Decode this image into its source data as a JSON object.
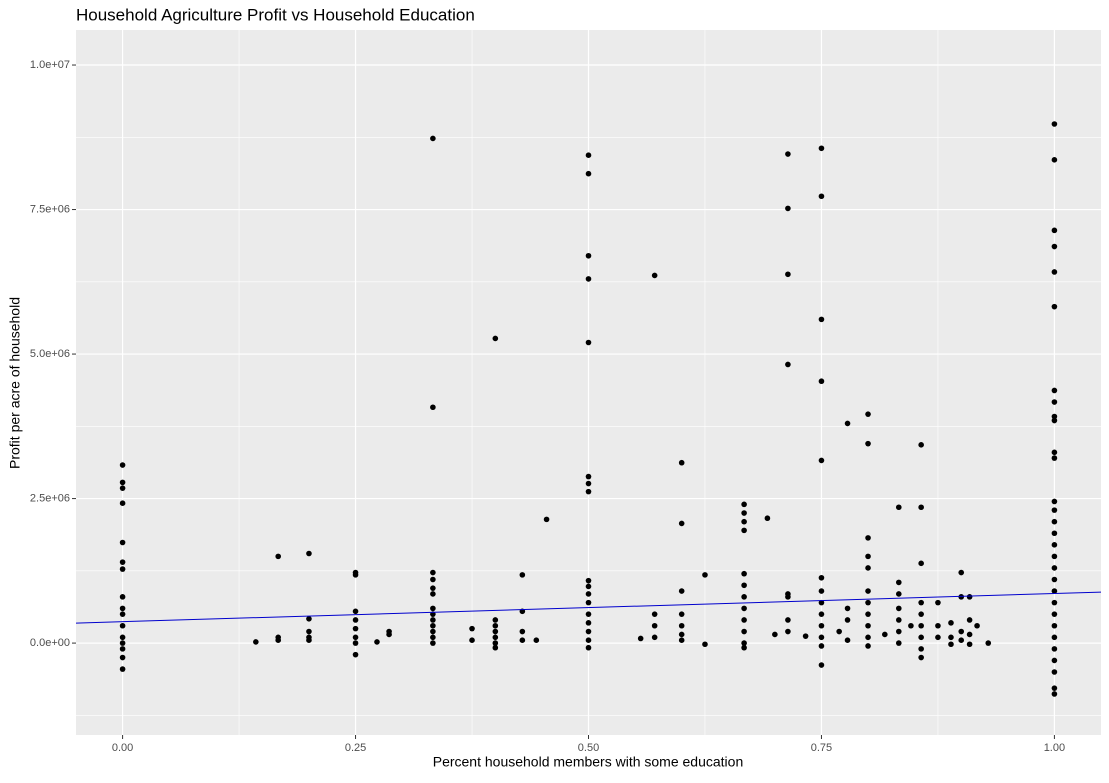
{
  "chart_data": {
    "type": "scatter",
    "title": "Household Agriculture Profit vs Household Education",
    "x_label": "Percent household members with some education",
    "y_label": "Profit per acre of household",
    "xlim": [
      -0.05,
      1.05
    ],
    "ylim": [
      -1590000,
      10606000
    ],
    "xticks": [
      {
        "value": 0,
        "label": "0.00"
      },
      {
        "value": 0.25,
        "label": "0.25"
      },
      {
        "value": 0.5,
        "label": "0.50"
      },
      {
        "value": 0.75,
        "label": "0.75"
      },
      {
        "value": 1,
        "label": "1.00"
      }
    ],
    "yticks": [
      {
        "value": 0,
        "label": "0.0e+00"
      },
      {
        "value": 2500000,
        "label": "2.5e+06"
      },
      {
        "value": 5000000,
        "label": "5.0e+06"
      },
      {
        "value": 7500000,
        "label": "7.5e+06"
      },
      {
        "value": 10000000,
        "label": "1.0e+07"
      }
    ],
    "xminor": [
      0.125,
      0.375,
      0.625,
      0.875
    ],
    "yminor": [
      -1250000,
      1250000,
      3750000,
      6250000,
      8750000
    ],
    "grid": true,
    "series": [
      {
        "color": "#000000",
        "x": [
          0,
          0,
          0,
          0,
          0,
          0,
          0,
          0,
          0,
          0,
          0,
          0,
          0,
          0,
          0,
          0,
          0.143,
          0.167,
          0.167,
          0.167,
          0.2,
          0.2,
          0.2,
          0.2,
          0.2,
          0.25,
          0.25,
          0.25,
          0.25,
          0.25,
          0.25,
          0.25,
          0.25,
          0.273,
          0.286,
          0.286,
          0.333,
          0.333,
          0.333,
          0.333,
          0.333,
          0.333,
          0.333,
          0.333,
          0.333,
          0.333,
          0.333,
          0.333,
          0.333,
          0.375,
          0.375,
          0.4,
          0.4,
          0.4,
          0.4,
          0.4,
          0.4,
          0.4,
          0.429,
          0.429,
          0.429,
          0.429,
          0.444,
          0.455,
          0.5,
          0.5,
          0.5,
          0.5,
          0.5,
          0.5,
          0.5,
          0.5,
          0.5,
          0.5,
          0.5,
          0.5,
          0.5,
          0.5,
          0.5,
          0.5,
          0.5,
          0.556,
          0.571,
          0.571,
          0.571,
          0.571,
          0.6,
          0.6,
          0.6,
          0.6,
          0.6,
          0.6,
          0.6,
          0.625,
          0.625,
          0.667,
          0.667,
          0.667,
          0.667,
          0.667,
          0.667,
          0.667,
          0.667,
          0.667,
          0.667,
          0.667,
          0.667,
          0.692,
          0.7,
          0.714,
          0.714,
          0.714,
          0.714,
          0.714,
          0.714,
          0.714,
          0.714,
          0.733,
          0.75,
          0.75,
          0.75,
          0.75,
          0.75,
          0.75,
          0.75,
          0.75,
          0.75,
          0.75,
          0.75,
          0.75,
          0.75,
          0.769,
          0.778,
          0.778,
          0.778,
          0.778,
          0.8,
          0.8,
          0.8,
          0.8,
          0.8,
          0.8,
          0.8,
          0.8,
          0.8,
          0.8,
          0.8,
          0.818,
          0.833,
          0.833,
          0.833,
          0.833,
          0.833,
          0.833,
          0.833,
          0.846,
          0.857,
          0.857,
          0.857,
          0.857,
          0.857,
          0.857,
          0.857,
          0.857,
          0.857,
          0.875,
          0.875,
          0.875,
          0.889,
          0.889,
          0.889,
          0.9,
          0.9,
          0.9,
          0.9,
          0.909,
          0.909,
          0.909,
          0.909,
          0.917,
          0.929,
          1,
          1,
          1,
          1,
          1,
          1,
          1,
          1,
          1,
          1,
          1,
          1,
          1,
          1,
          1,
          1,
          1,
          1,
          1,
          1,
          1,
          1,
          1,
          1,
          1,
          1,
          1,
          1,
          1,
          1
        ],
        "values": [
          3080000,
          2780000,
          2680000,
          2420000,
          1740000,
          1400000,
          1280000,
          800000,
          600000,
          500000,
          300000,
          100000,
          0,
          -100000,
          -250000,
          -450000,
          20000,
          1500000,
          100000,
          50000,
          1550000,
          420000,
          200000,
          100000,
          50000,
          1220000,
          1180000,
          550000,
          400000,
          250000,
          100000,
          0,
          -200000,
          20000,
          200000,
          150000,
          8730000,
          4080000,
          1220000,
          1100000,
          950000,
          850000,
          600000,
          500000,
          400000,
          300000,
          200000,
          100000,
          0,
          250000,
          50000,
          5270000,
          400000,
          300000,
          200000,
          100000,
          0,
          -80000,
          1180000,
          550000,
          200000,
          50000,
          50000,
          2140000,
          8440000,
          8120000,
          6700000,
          6300000,
          5200000,
          2880000,
          2760000,
          2620000,
          1080000,
          980000,
          850000,
          700000,
          500000,
          350000,
          200000,
          50000,
          -80000,
          80000,
          6360000,
          500000,
          300000,
          100000,
          3120000,
          2070000,
          900000,
          500000,
          300000,
          150000,
          50000,
          1180000,
          -20000,
          2400000,
          2250000,
          2100000,
          1950000,
          1200000,
          1000000,
          800000,
          600000,
          400000,
          200000,
          0,
          -80000,
          2160000,
          150000,
          8460000,
          7520000,
          6380000,
          4820000,
          850000,
          800000,
          400000,
          200000,
          120000,
          8560000,
          7730000,
          5600000,
          4530000,
          3160000,
          1130000,
          900000,
          700000,
          500000,
          300000,
          100000,
          -50000,
          -380000,
          200000,
          3800000,
          600000,
          400000,
          50000,
          3960000,
          3450000,
          1820000,
          1500000,
          1300000,
          900000,
          700000,
          500000,
          300000,
          100000,
          -50000,
          150000,
          2350000,
          1050000,
          850000,
          600000,
          400000,
          200000,
          0,
          300000,
          3430000,
          2350000,
          1380000,
          700000,
          500000,
          300000,
          100000,
          -100000,
          -250000,
          700000,
          300000,
          100000,
          350000,
          100000,
          -20000,
          1220000,
          800000,
          200000,
          50000,
          800000,
          400000,
          150000,
          -20000,
          300000,
          0,
          8980000,
          8360000,
          7140000,
          6860000,
          6420000,
          5820000,
          4370000,
          4170000,
          3920000,
          3850000,
          3300000,
          3200000,
          2450000,
          2300000,
          2100000,
          1900000,
          1700000,
          1500000,
          1300000,
          1100000,
          900000,
          700000,
          500000,
          300000,
          100000,
          -100000,
          -300000,
          -500000,
          -780000,
          -880000
        ]
      }
    ],
    "trend": {
      "color": "#0000cd",
      "x": [
        -0.05,
        1.05
      ],
      "values": [
        346000,
        882000
      ]
    }
  }
}
